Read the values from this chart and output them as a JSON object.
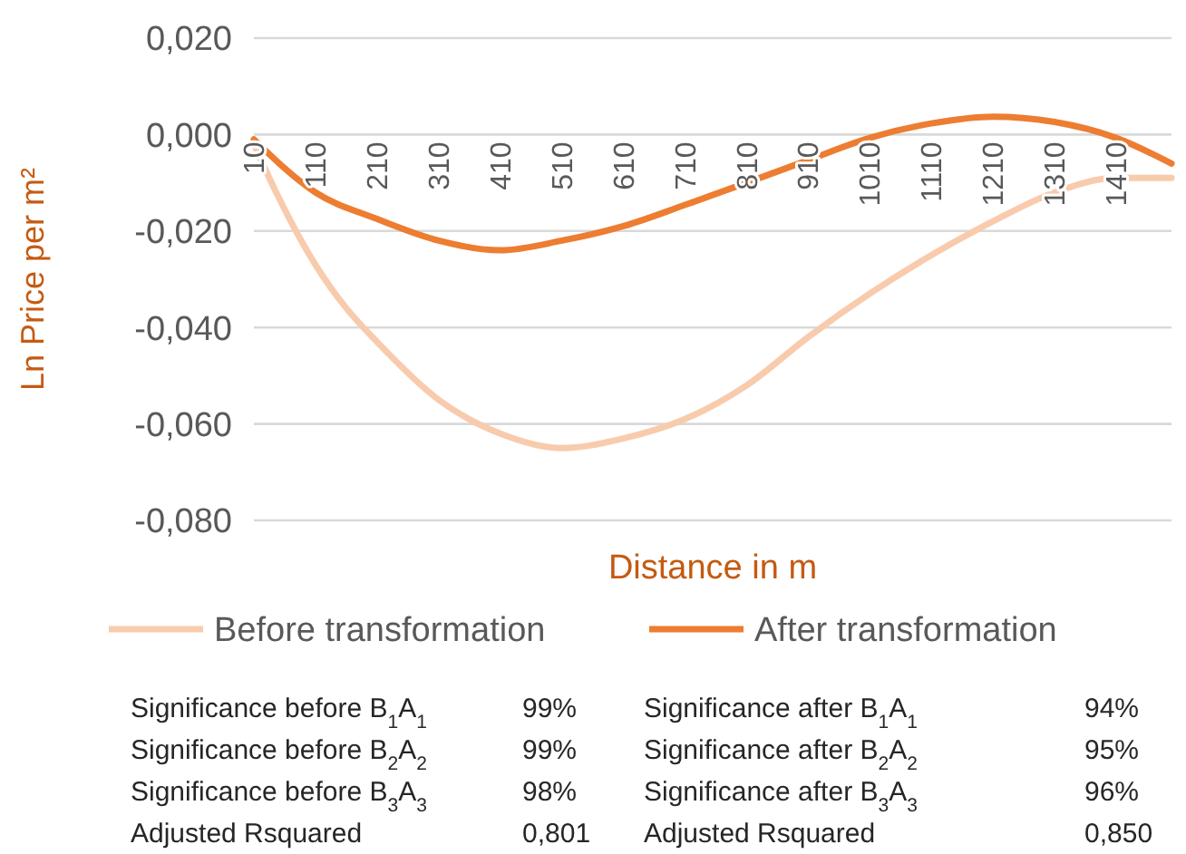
{
  "chart_data": {
    "type": "line",
    "xlabel": "Distance in m",
    "ylabel": "Ln Price per m²",
    "xlim": [
      10,
      1500
    ],
    "xticks": [
      10,
      110,
      210,
      310,
      410,
      510,
      610,
      710,
      810,
      910,
      1010,
      1110,
      1210,
      1310,
      1410
    ],
    "ylim": [
      -0.08,
      0.02
    ],
    "yticks": [
      {
        "value": -0.08,
        "label": "-0,080"
      },
      {
        "value": -0.06,
        "label": "-0,060"
      },
      {
        "value": -0.04,
        "label": "-0,040"
      },
      {
        "value": -0.02,
        "label": "-0,020"
      },
      {
        "value": 0,
        "label": "0,000"
      },
      {
        "value": 0.02,
        "label": "0,020"
      }
    ],
    "grid": "y",
    "legend": "bottom",
    "marker": "none",
    "line_style": "solid",
    "series": [
      {
        "name": "Before transformation",
        "color": "#f8cbad",
        "x": [
          10,
          50,
          110,
          160,
          210,
          310,
          410,
          510,
          610,
          710,
          810,
          910,
          1010,
          1110,
          1210,
          1310,
          1410,
          1500
        ],
        "values": [
          -0.002,
          -0.013,
          -0.027,
          -0.036,
          -0.043,
          -0.055,
          -0.062,
          -0.065,
          -0.063,
          -0.059,
          -0.052,
          -0.042,
          -0.033,
          -0.025,
          -0.018,
          -0.012,
          -0.009,
          -0.009
        ]
      },
      {
        "name": "After transformation",
        "color": "#ed7d31",
        "x": [
          10,
          110,
          210,
          310,
          410,
          510,
          610,
          710,
          810,
          910,
          1010,
          1110,
          1210,
          1310,
          1410,
          1500
        ],
        "values": [
          -0.001,
          -0.012,
          -0.0175,
          -0.022,
          -0.024,
          -0.022,
          -0.019,
          -0.0146,
          -0.01,
          -0.0053,
          -0.0007,
          0.0023,
          0.0037,
          0.0026,
          -0.0007,
          -0.006
        ]
      }
    ],
    "annotations": [
      "Significance before B$_{1}$A$_{1}$",
      "99%",
      "Significance after B$_{1}$A$_{1}$",
      "94%",
      "Significance before B$_{2}$A$_{2}$",
      "99%",
      "Significance after B$_{2}$A$_{2}$",
      "95%",
      "Significance before B$_{3}$A$_{3}$",
      "98%",
      "Significance after B$_{3}$A$_{3}$",
      "96%",
      "Adjusted Rsquared",
      "0,801",
      "Adjusted Rsquared",
      "0,850"
    ]
  }
}
